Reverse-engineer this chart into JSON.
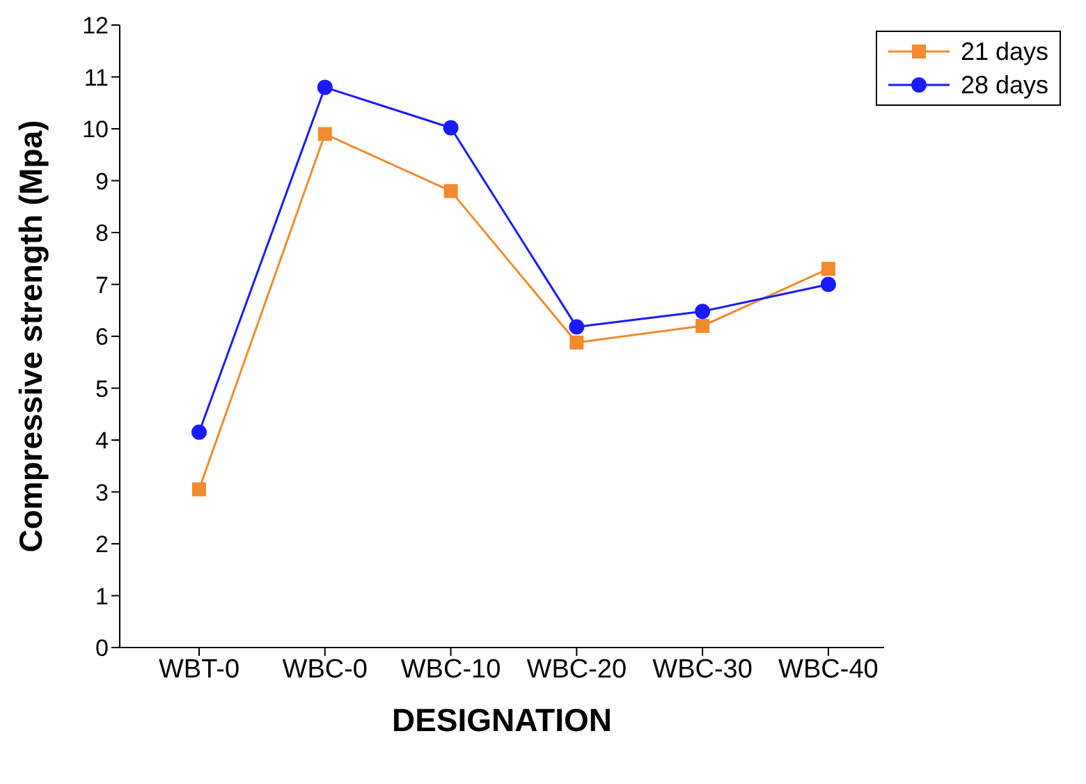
{
  "chart_data": {
    "type": "line",
    "xlabel": "DESIGNATION",
    "ylabel": "Compressive strength (Mpa)",
    "categories": [
      "WBT-0",
      "WBC-0",
      "WBC-10",
      "WBC-20",
      "WBC-30",
      "WBC-40"
    ],
    "series": [
      {
        "name": "21 days",
        "color": "#f28a2e",
        "marker": "square",
        "values": [
          3.05,
          9.9,
          8.8,
          5.88,
          6.2,
          7.3
        ]
      },
      {
        "name": "28 days",
        "color": "#1a1aff",
        "marker": "circle",
        "values": [
          4.15,
          10.8,
          10.02,
          6.18,
          6.48,
          7.0
        ]
      }
    ],
    "ylim": [
      0,
      12
    ],
    "yticks": [
      0,
      1,
      2,
      3,
      4,
      5,
      6,
      7,
      8,
      9,
      10,
      11,
      12
    ],
    "grid": false,
    "legend": "top right",
    "line_style": "solid"
  }
}
